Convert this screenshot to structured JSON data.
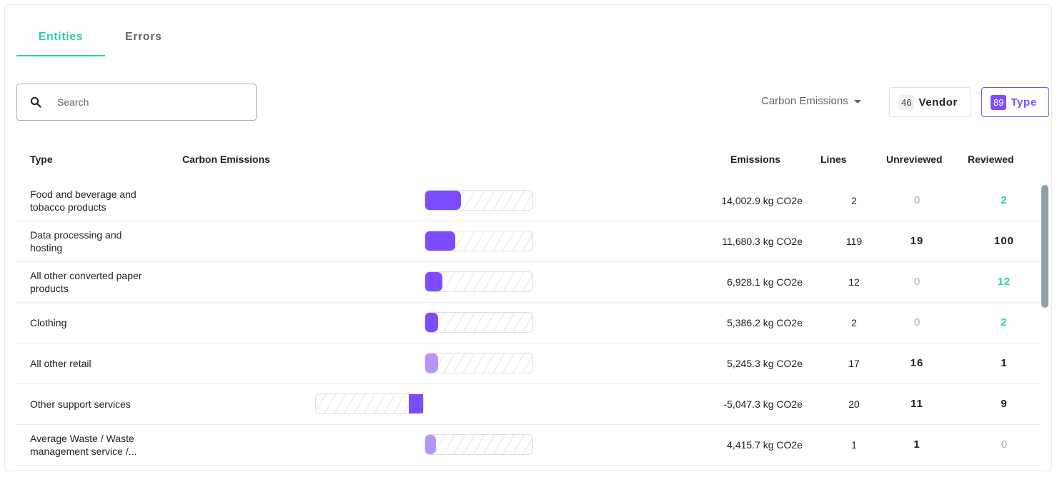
{
  "tabs": {
    "entities": "Entities",
    "errors": "Errors"
  },
  "search": {
    "placeholder": "Search",
    "value": ""
  },
  "sort": {
    "label": "Carbon Emissions"
  },
  "filters": {
    "vendor": {
      "count": "46",
      "label": "Vendor"
    },
    "type": {
      "count": "89",
      "label": "Type"
    }
  },
  "colors": {
    "accent": "#2ecbae",
    "purple": "#7b4dff",
    "purple_light": "#b894f8"
  },
  "table": {
    "headers": {
      "type": "Type",
      "carbon": "Carbon Emissions",
      "emissions": "Emissions",
      "lines": "Lines",
      "unreviewed": "Unreviewed",
      "reviewed": "Reviewed"
    },
    "rows": [
      {
        "type": "Food and beverage and tobacco products",
        "emissions": "14,002.9 kg CO2e",
        "lines": "2",
        "unreviewed": "0",
        "reviewed": "2",
        "bar_ratio": 0.33,
        "bar_sign": "pos",
        "bar_color": "#7b4dff"
      },
      {
        "type": "Data processing and hosting",
        "emissions": "11,680.3 kg CO2e",
        "lines": "119",
        "unreviewed": "19",
        "reviewed": "100",
        "bar_ratio": 0.28,
        "bar_sign": "pos",
        "bar_color": "#7b4dff"
      },
      {
        "type": "All other converted paper products",
        "emissions": "6,928.1 kg CO2e",
        "lines": "12",
        "unreviewed": "0",
        "reviewed": "12",
        "bar_ratio": 0.16,
        "bar_sign": "pos",
        "bar_color": "#7b4dff"
      },
      {
        "type": "Clothing",
        "emissions": "5,386.2 kg CO2e",
        "lines": "2",
        "unreviewed": "0",
        "reviewed": "2",
        "bar_ratio": 0.12,
        "bar_sign": "pos",
        "bar_color": "#7b4dff"
      },
      {
        "type": "All other retail",
        "emissions": "5,245.3 kg CO2e",
        "lines": "17",
        "unreviewed": "16",
        "reviewed": "1",
        "bar_ratio": 0.12,
        "bar_sign": "pos",
        "bar_color": "#b894f8"
      },
      {
        "type": "Other support services",
        "emissions": "-5,047.3 kg CO2e",
        "lines": "20",
        "unreviewed": "11",
        "reviewed": "9",
        "bar_ratio": 0.13,
        "bar_sign": "neg",
        "bar_color": "#7b4dff"
      },
      {
        "type": "Average Waste / Waste management service /...",
        "emissions": "4,415.7 kg CO2e",
        "lines": "1",
        "unreviewed": "1",
        "reviewed": "0",
        "bar_ratio": 0.1,
        "bar_sign": "pos",
        "bar_color": "#b894f8"
      }
    ]
  }
}
